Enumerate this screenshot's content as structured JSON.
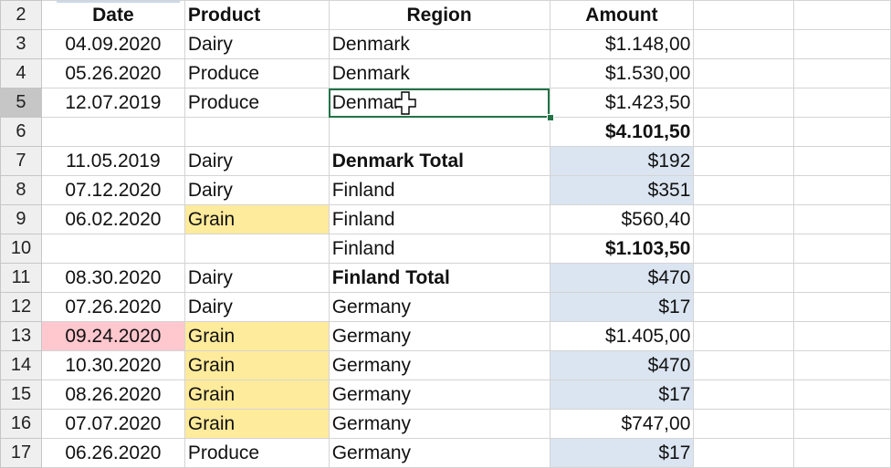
{
  "header_row": {
    "row_number": "2",
    "cells": [
      "Date",
      "Product",
      "Region",
      "Amount"
    ]
  },
  "rows": [
    {
      "n": "3",
      "date": "04.09.2020",
      "product": "Dairy",
      "region": "Denmark",
      "amount": "$1.148,00"
    },
    {
      "n": "4",
      "date": "05.26.2020",
      "product": "Produce",
      "region": "Denmark",
      "amount": "$1.530,00"
    },
    {
      "n": "5",
      "date": "12.07.2019",
      "product": "Produce",
      "region": "Denmark",
      "amount": "$1.423,50"
    },
    {
      "n": "6",
      "date": "",
      "product": "",
      "region": "",
      "amount": "$4.101,50"
    },
    {
      "n": "7",
      "date": "11.05.2019",
      "product": "Dairy",
      "region": "Denmark Total",
      "amount": "$192"
    },
    {
      "n": "8",
      "date": "07.12.2020",
      "product": "Dairy",
      "region": "Finland",
      "amount": "$351"
    },
    {
      "n": "9",
      "date": "06.02.2020",
      "product": "Grain",
      "region": "Finland",
      "amount": "$560,40"
    },
    {
      "n": "10",
      "date": "",
      "product": "",
      "region": "Finland",
      "amount": "$1.103,50"
    },
    {
      "n": "11",
      "date": "08.30.2020",
      "product": "Dairy",
      "region": "Finland Total",
      "amount": "$470"
    },
    {
      "n": "12",
      "date": "07.26.2020",
      "product": "Dairy",
      "region": "Germany",
      "amount": "$17"
    },
    {
      "n": "13",
      "date": "09.24.2020",
      "product": "Grain",
      "region": "Germany",
      "amount": "$1.405,00"
    },
    {
      "n": "14",
      "date": "10.30.2020",
      "product": "Grain",
      "region": "Germany",
      "amount": "$470"
    },
    {
      "n": "15",
      "date": "08.26.2020",
      "product": "Grain",
      "region": "Germany",
      "amount": "$17"
    },
    {
      "n": "16",
      "date": "07.07.2020",
      "product": "Grain",
      "region": "Germany",
      "amount": "$747,00"
    },
    {
      "n": "17",
      "date": "06.26.2020",
      "product": "Produce",
      "region": "Germany",
      "amount": "$17"
    }
  ],
  "colors": {
    "selection": "#217346",
    "blue_fill": "#dbe5f1",
    "yellow_fill": "#ffeb9c",
    "yellow_text": "#9c6500",
    "pink_fill": "#ffc7ce",
    "pink_text": "#9c0006"
  },
  "cursor_icon": "cell-select-cross-icon"
}
